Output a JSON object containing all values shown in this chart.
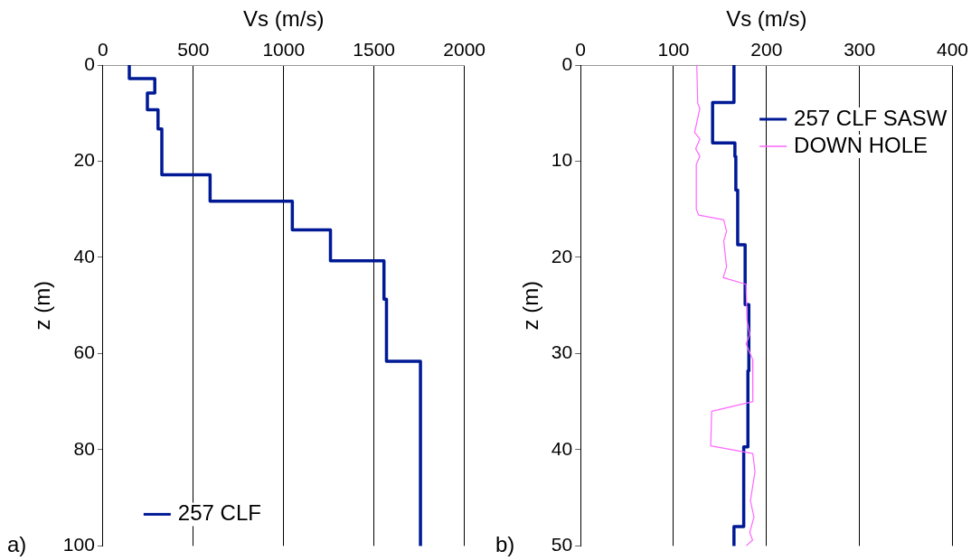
{
  "chart_data": [
    {
      "type": "line",
      "xlabel": "Vs (m/s)",
      "ylabel": "z (m)",
      "xlim": [
        0,
        2000
      ],
      "xticks": [
        0,
        500,
        1000,
        1500,
        2000
      ],
      "ylim": [
        100,
        0
      ],
      "yticks": [
        0,
        20,
        40,
        60,
        80,
        100
      ],
      "grid": "x",
      "legend": "bottom left",
      "marker": "none",
      "annotations": [
        "a)"
      ],
      "series": [
        {
          "name": "257 CLF",
          "color": "#001a96",
          "x": [
            146,
            146,
            287,
            287,
            246,
            246,
            305,
            305,
            326,
            326,
            593,
            593,
            1048,
            1048,
            1259,
            1259,
            1555,
            1555,
            1569,
            1569,
            1757,
            1757
          ],
          "values": [
            0,
            2.8,
            2.8,
            5.8,
            5.8,
            9.3,
            9.3,
            13.3,
            13.3,
            22.8,
            22.8,
            28.3,
            28.3,
            34.3,
            34.3,
            40.7,
            40.7,
            48.7,
            48.7,
            61.6,
            61.6,
            100
          ]
        }
      ]
    },
    {
      "type": "line",
      "xlabel": "Vs (m/s)",
      "ylabel": "z (m)",
      "xlim": [
        0,
        400
      ],
      "xticks": [
        0,
        100,
        200,
        300,
        400
      ],
      "ylim": [
        50,
        0
      ],
      "yticks": [
        0,
        10,
        20,
        30,
        40,
        50
      ],
      "grid": "x",
      "legend": "top right",
      "marker": "none",
      "annotations": [
        "b)"
      ],
      "series": [
        {
          "name": "257 CLF SASW",
          "color": "#001a96",
          "x": [
            165,
            165,
            142,
            142,
            166,
            166,
            167,
            167,
            169,
            169,
            177,
            177,
            181,
            181,
            180,
            180,
            175.5,
            175.5,
            165,
            165
          ],
          "values": [
            0,
            3.9,
            3.9,
            8.1,
            8.1,
            9.5,
            9.5,
            13,
            13,
            18.7,
            18.7,
            24.9,
            24.9,
            31.8,
            31.8,
            39.7,
            39.7,
            48,
            48,
            50
          ]
        },
        {
          "name": "DOWN HOLE",
          "color": "#ff66ff",
          "x": [
            125,
            126,
            128.3,
            122.7,
            128.3,
            123.8,
            128.3,
            124.5,
            124.5,
            127,
            154,
            157,
            154,
            157,
            153.4,
            178,
            179,
            182,
            178,
            185,
            185.3,
            141,
            140,
            185.3,
            187.6,
            182.7,
            186.5,
            182,
            185,
            178
          ],
          "values": [
            0,
            4,
            4.5,
            7,
            7.7,
            8.7,
            9.5,
            10.3,
            15,
            15.6,
            16.1,
            17.3,
            18.3,
            21,
            22.1,
            22.8,
            26.6,
            28,
            29,
            30.6,
            35,
            36,
            39.6,
            40.4,
            42.3,
            45.3,
            47,
            48.6,
            49.4,
            50
          ]
        }
      ]
    }
  ]
}
